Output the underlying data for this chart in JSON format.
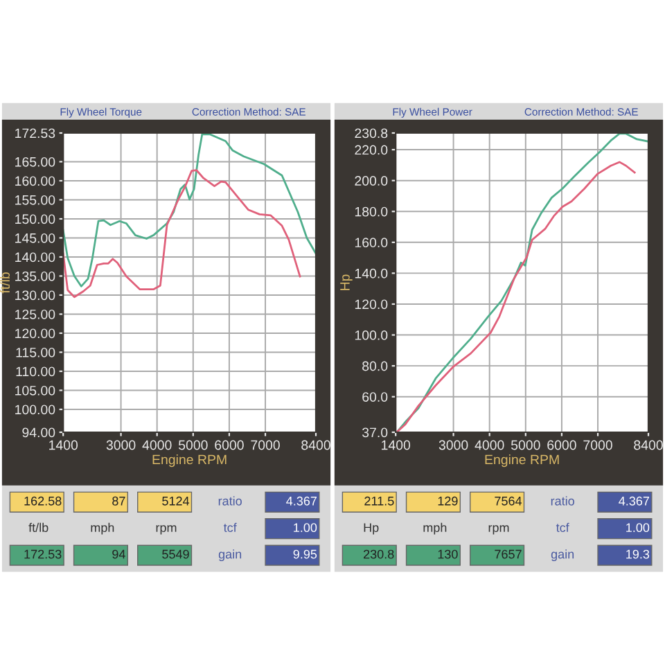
{
  "chart_data": [
    {
      "type": "line",
      "title": "Fly Wheel Torque",
      "subtitle": "Correction Method: SAE",
      "xlabel": "Engine RPM",
      "ylabel": "ft/lb",
      "xlim": [
        1400,
        8400
      ],
      "ylim": [
        94,
        172.53
      ],
      "xticks": [
        1400,
        3000,
        4000,
        5000,
        6000,
        7000,
        8400
      ],
      "yticks": [
        {
          "value": 94,
          "label": "94.00"
        },
        {
          "value": 100,
          "label": "100.00"
        },
        {
          "value": 105,
          "label": "105.00"
        },
        {
          "value": 110,
          "label": "110.00"
        },
        {
          "value": 115,
          "label": "115.00"
        },
        {
          "value": 120,
          "label": "120.00"
        },
        {
          "value": 125,
          "label": "125.00"
        },
        {
          "value": 130,
          "label": "130.00"
        },
        {
          "value": 135,
          "label": "135.00"
        },
        {
          "value": 140,
          "label": "140.00"
        },
        {
          "value": 145,
          "label": "145.00"
        },
        {
          "value": 150,
          "label": "150.00"
        },
        {
          "value": 155,
          "label": "155.00"
        },
        {
          "value": 160,
          "label": "160.00"
        },
        {
          "value": 165,
          "label": "165.00"
        },
        172.53
      ],
      "grid": true,
      "series": [
        {
          "color": "#4fae8c",
          "x": [
            1400,
            1525,
            1710,
            1900,
            2090,
            2210,
            2375,
            2525,
            2710,
            2960,
            3150,
            3400,
            3710,
            3900,
            4275,
            4460,
            4650,
            4775,
            4900,
            5025,
            5150,
            5250,
            5460,
            5900,
            6090,
            6400,
            6960,
            7460,
            7900,
            8150,
            8400
          ],
          "values": [
            147,
            139.7,
            135,
            132.3,
            134.3,
            139.7,
            149.4,
            149.6,
            148.4,
            149.4,
            148.8,
            145.7,
            144.8,
            145.7,
            148.8,
            151.8,
            157.8,
            159,
            155.1,
            157.8,
            166.8,
            172.2,
            172.2,
            170.4,
            168,
            166.4,
            164.4,
            161.4,
            151.8,
            145,
            140.9
          ]
        },
        {
          "color": "#e0607a",
          "x": [
            1400,
            1525,
            1710,
            1960,
            2150,
            2340,
            2525,
            2650,
            2775,
            2900,
            3150,
            3525,
            3900,
            4090,
            4275,
            4590,
            4775,
            4960,
            5090,
            5275,
            5590,
            5775,
            5900,
            6210,
            6525,
            6840,
            7150,
            7460,
            7650,
            7960
          ],
          "values": [
            140.9,
            131.3,
            129.5,
            131,
            132.5,
            137.9,
            138.3,
            138.3,
            139.5,
            138.5,
            134.9,
            131.5,
            131.5,
            132.5,
            148.4,
            155.1,
            158.4,
            162.6,
            162.8,
            160.8,
            158.6,
            159.8,
            159.6,
            156,
            152.4,
            151.2,
            150.9,
            148.2,
            144.5,
            134.9
          ]
        }
      ],
      "annotations": [
        "162.58",
        "87",
        "5124",
        "ratio",
        "4.367",
        "ft/lb",
        "mph",
        "rpm",
        "tcf",
        "1.00",
        "172.53",
        "94",
        "5549",
        "gain",
        "9.95"
      ]
    },
    {
      "type": "line",
      "title": "Fly Wheel Power",
      "subtitle": "Correction Method: SAE",
      "xlabel": "Engine RPM",
      "ylabel": "Hp",
      "xlim": [
        1400,
        8400
      ],
      "ylim": [
        37,
        230.8
      ],
      "xticks": [
        1400,
        3000,
        4000,
        5000,
        6000,
        7000,
        8400
      ],
      "yticks": [
        {
          "value": 37,
          "label": "37.0"
        },
        {
          "value": 60,
          "label": "60.0"
        },
        {
          "value": 80,
          "label": "80.0"
        },
        {
          "value": 100,
          "label": "100.0"
        },
        {
          "value": 120,
          "label": "120.0"
        },
        {
          "value": 140,
          "label": "140.0"
        },
        {
          "value": 160,
          "label": "160.0"
        },
        {
          "value": 180,
          "label": "180.0"
        },
        {
          "value": 200,
          "label": "200.0"
        },
        {
          "value": 220,
          "label": "220.0"
        },
        230.8
      ],
      "grid": true,
      "series": [
        {
          "color": "#4fae8c",
          "x": [
            1450,
            1670,
            2030,
            2510,
            2990,
            3480,
            3960,
            4330,
            4690,
            4870,
            4990,
            5180,
            5420,
            5720,
            6020,
            6390,
            6750,
            7050,
            7360,
            7600,
            7780,
            8080,
            8400
          ],
          "values": [
            37.5,
            43.7,
            52.6,
            71.9,
            85.2,
            97.6,
            111.9,
            122.2,
            137,
            146.8,
            145,
            168.1,
            178.5,
            188.9,
            194.8,
            203.7,
            212,
            218.5,
            225.9,
            230.4,
            230.4,
            226.8,
            225.3
          ]
        },
        {
          "color": "#e0607a",
          "x": [
            1450,
            1670,
            2030,
            2510,
            2990,
            3480,
            4030,
            4270,
            4690,
            5030,
            5180,
            5540,
            5780,
            6020,
            6270,
            6630,
            6990,
            7360,
            7600,
            7780,
            8020
          ],
          "values": [
            37.5,
            42.2,
            54.1,
            67.4,
            79.3,
            88.1,
            101.5,
            111.9,
            137,
            150.4,
            161.6,
            168.7,
            177,
            183,
            186.5,
            194.8,
            204.3,
            209.6,
            212,
            209.6,
            205.2
          ]
        }
      ],
      "annotations": [
        "211.5",
        "129",
        "7564",
        "ratio",
        "4.367",
        "Hp",
        "mph",
        "rpm",
        "tcf",
        "1.00",
        "230.8",
        "130",
        "7657",
        "gain",
        "19.3"
      ]
    }
  ]
}
